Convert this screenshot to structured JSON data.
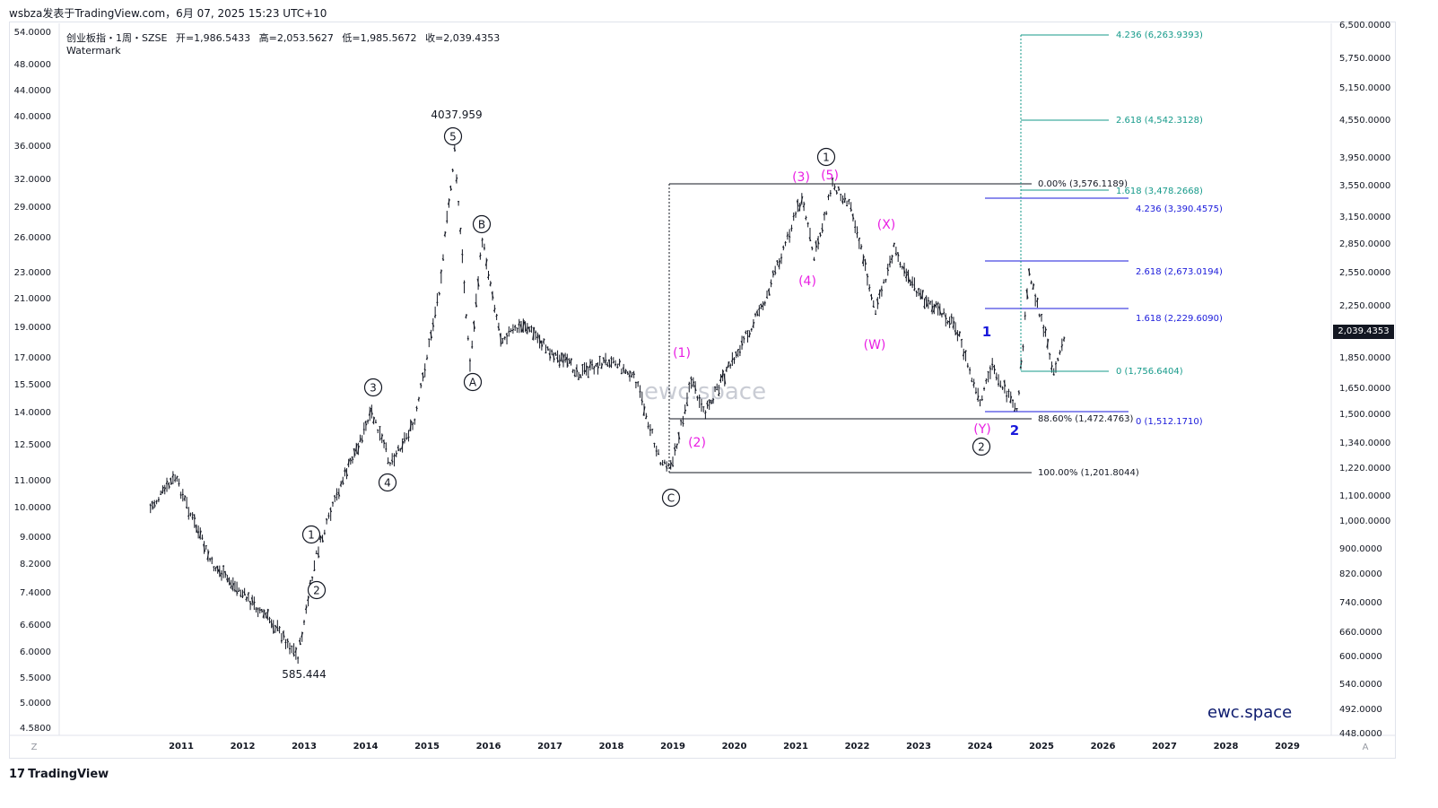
{
  "header": {
    "publisher": "wsbza发表于TradingView.com，6月 07, 2025 15:23 UTC+10"
  },
  "legend": {
    "symbol": "创业板指・1周・SZSE",
    "open": "开=1,986.5433",
    "high": "高=2,053.5627",
    "low": "低=1,985.5672",
    "close": "收=2,039.4353",
    "watermark_label": "Watermark"
  },
  "watermark_text": "ewc.space",
  "brand_text": "ewc.space",
  "footer": {
    "brand": "TradingView",
    "logo": "17"
  },
  "corner": {
    "left": "Z",
    "right": "A"
  },
  "colors": {
    "candle": "#131722",
    "magenta": "#e91ee3",
    "blue": "#1a1adb",
    "teal": "#159a8a",
    "navy": "#0d1b6e",
    "price_tag_bg": "#131722"
  },
  "chart_data": {
    "type": "candlestick",
    "scale": "log",
    "x_ticks": [
      "2011",
      "2012",
      "2013",
      "2014",
      "2015",
      "2016",
      "2017",
      "2018",
      "2019",
      "2020",
      "2021",
      "2022",
      "2023",
      "2024",
      "2025",
      "2026",
      "2027",
      "2028",
      "2029"
    ],
    "left_axis_ticks": [
      "54.0000",
      "48.0000",
      "44.0000",
      "40.0000",
      "36.0000",
      "32.0000",
      "29.0000",
      "26.0000",
      "23.0000",
      "21.0000",
      "19.0000",
      "17.0000",
      "15.5000",
      "14.0000",
      "12.5000",
      "11.0000",
      "10.0000",
      "9.0000",
      "8.2000",
      "7.4000",
      "6.6000",
      "6.0000",
      "5.5000",
      "5.0000",
      "4.5800"
    ],
    "right_axis_ticks": [
      "6,500.0000",
      "5,750.0000",
      "5,150.0000",
      "4,550.0000",
      "3,950.0000",
      "3,550.0000",
      "3,150.0000",
      "2,850.0000",
      "2,550.0000",
      "2,250.0000",
      "1,850.0000",
      "1,650.0000",
      "1,500.0000",
      "1,340.0000",
      "1,220.0000",
      "1,100.0000",
      "1,000.0000",
      "900.0000",
      "820.0000",
      "740.0000",
      "660.0000",
      "600.0000",
      "540.0000",
      "492.0000",
      "448.0000"
    ],
    "last_price": "2,039.4353",
    "price_points": [
      {
        "t": "2010.5",
        "v": 1050
      },
      {
        "t": "2010.9",
        "v": 1180
      },
      {
        "t": "2011.5",
        "v": 850
      },
      {
        "t": "2012.0",
        "v": 760
      },
      {
        "t": "2012.5",
        "v": 680
      },
      {
        "t": "2012.9",
        "v": 600
      },
      {
        "t": "2013.2",
        "v": 880
      },
      {
        "t": "2013.6",
        "v": 1150
      },
      {
        "t": "2014.1",
        "v": 1500
      },
      {
        "t": "2014.4",
        "v": 1250
      },
      {
        "t": "2014.8",
        "v": 1450
      },
      {
        "t": "2015.2",
        "v": 2400
      },
      {
        "t": "2015.45",
        "v": 4037.959
      },
      {
        "t": "2015.7",
        "v": 1800
      },
      {
        "t": "2015.9",
        "v": 2900
      },
      {
        "t": "2016.2",
        "v": 2000
      },
      {
        "t": "2016.6",
        "v": 2100
      },
      {
        "t": "2017.0",
        "v": 1900
      },
      {
        "t": "2017.5",
        "v": 1750
      },
      {
        "t": "2018.0",
        "v": 1850
      },
      {
        "t": "2018.4",
        "v": 1700
      },
      {
        "t": "2018.8",
        "v": 1250
      },
      {
        "t": "2019.0",
        "v": 1250
      },
      {
        "t": "2019.3",
        "v": 1700
      },
      {
        "t": "2019.5",
        "v": 1500
      },
      {
        "t": "2020.0",
        "v": 1850
      },
      {
        "t": "2020.5",
        "v": 2300
      },
      {
        "t": "2020.8",
        "v": 2800
      },
      {
        "t": "2021.1",
        "v": 3400
      },
      {
        "t": "2021.3",
        "v": 2700
      },
      {
        "t": "2021.6",
        "v": 3576
      },
      {
        "t": "2021.9",
        "v": 3300
      },
      {
        "t": "2022.3",
        "v": 2200
      },
      {
        "t": "2022.6",
        "v": 2800
      },
      {
        "t": "2023.0",
        "v": 2350
      },
      {
        "t": "2023.6",
        "v": 2100
      },
      {
        "t": "2024.0",
        "v": 1550
      },
      {
        "t": "2024.2",
        "v": 1800
      },
      {
        "t": "2024.6",
        "v": 1500
      },
      {
        "t": "2024.8",
        "v": 2550
      },
      {
        "t": "2025.0",
        "v": 2150
      },
      {
        "t": "2025.2",
        "v": 1760
      },
      {
        "t": "2025.4",
        "v": 2039.4353
      }
    ],
    "price_labels": [
      "4037.959",
      "585.444"
    ],
    "wave_labels": {
      "circled_black": [
        "1",
        "2",
        "3",
        "4",
        "5",
        "A",
        "B",
        "C",
        "1",
        "2"
      ],
      "magenta": [
        "(1)",
        "(2)",
        "(3)",
        "(4)",
        "(5)",
        "(W)",
        "(X)",
        "(Y)"
      ],
      "blue": [
        "1",
        "2"
      ]
    },
    "fib_levels": [
      {
        "label": "0.00% (3,576.1189)",
        "color": "black"
      },
      {
        "label": "88.60% (1,472.4763)",
        "color": "black"
      },
      {
        "label": "100.00% (1,201.8044)",
        "color": "black"
      },
      {
        "label": "4.236 (6,263.9393)",
        "color": "teal"
      },
      {
        "label": "2.618 (4,542.3128)",
        "color": "teal"
      },
      {
        "label": "1.618 (3,478.2668)",
        "color": "teal"
      },
      {
        "label": "0 (1,756.6404)",
        "color": "teal"
      },
      {
        "label": "4.236 (3,390.4575)",
        "color": "blue"
      },
      {
        "label": "2.618 (2,673.0194)",
        "color": "blue"
      },
      {
        "label": "1.618 (2,229.6090)",
        "color": "blue"
      },
      {
        "label": "0 (1,512.1710)",
        "color": "blue"
      }
    ]
  }
}
